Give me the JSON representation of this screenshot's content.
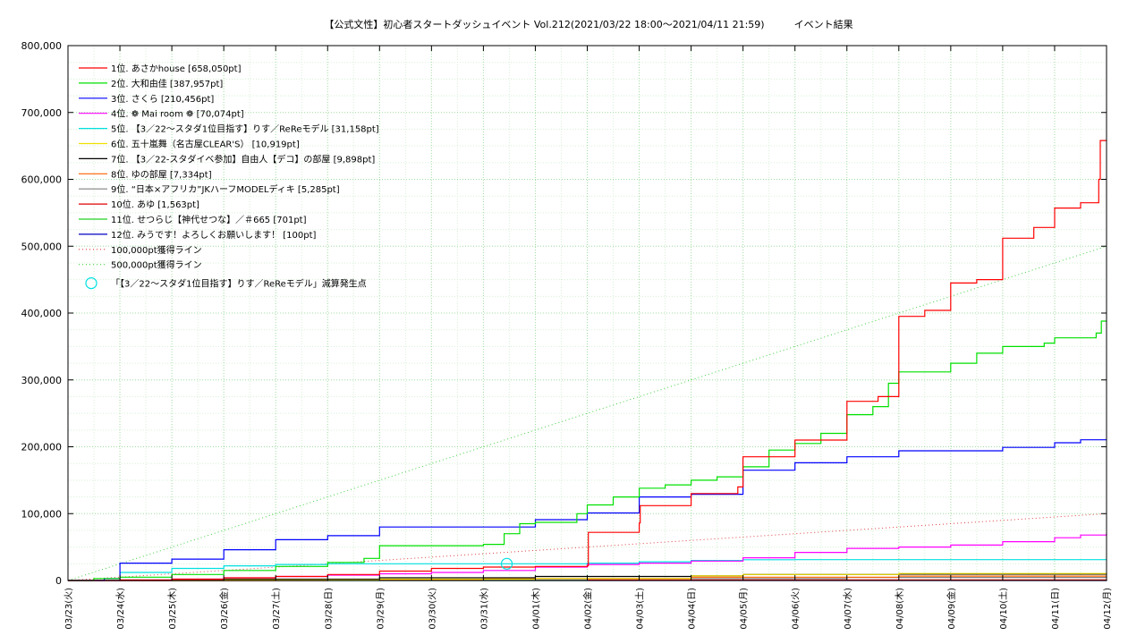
{
  "chart_data": {
    "type": "line",
    "title": "【公式文性】初心者スタートダッシュイベント Vol.212(2021/03/22 18:00〜2021/04/11 21:59)　　　イベント結果",
    "xlabel": "",
    "ylabel": "",
    "x_start": "03/23(火)",
    "x_tick_labels": [
      "03/23(火)",
      "03/24(水)",
      "03/25(木)",
      "03/26(金)",
      "03/27(土)",
      "03/28(日)",
      "03/29(月)",
      "03/30(火)",
      "03/31(水)",
      "04/01(木)",
      "04/02(金)",
      "04/03(土)",
      "04/04(日)",
      "04/05(月)",
      "04/06(火)",
      "04/07(水)",
      "04/08(木)",
      "04/09(金)",
      "04/10(土)",
      "04/11(日)",
      "04/12(月)"
    ],
    "y_tick_labels": [
      "0",
      "100,000",
      "200,000",
      "300,000",
      "400,000",
      "500,000",
      "600,000",
      "700,000",
      "800,000"
    ],
    "ylim": [
      0,
      800000
    ],
    "grid": true,
    "legend_position": "top-left",
    "series": [
      {
        "name": "1位. あさかhouse [658,050pt]",
        "color": "#ff0000",
        "points": [
          [
            0,
            0
          ],
          [
            1,
            1000
          ],
          [
            2,
            2000
          ],
          [
            3,
            4000
          ],
          [
            4,
            6000
          ],
          [
            5,
            9000
          ],
          [
            6,
            14000
          ],
          [
            7,
            18000
          ],
          [
            8,
            20000
          ],
          [
            9,
            21000
          ],
          [
            10,
            22000
          ],
          [
            10.02,
            72000
          ],
          [
            11,
            86000
          ],
          [
            11.02,
            112000
          ],
          [
            12,
            130000
          ],
          [
            12.9,
            140000
          ],
          [
            13,
            185000
          ],
          [
            14,
            210000
          ],
          [
            15,
            268000
          ],
          [
            15.6,
            275000
          ],
          [
            16,
            395000
          ],
          [
            16.5,
            404000
          ],
          [
            17,
            445000
          ],
          [
            17.5,
            450000
          ],
          [
            18,
            512000
          ],
          [
            18.6,
            528000
          ],
          [
            19,
            557000
          ],
          [
            19.5,
            565000
          ],
          [
            19.85,
            600000
          ],
          [
            19.88,
            658050
          ],
          [
            20,
            658050
          ]
        ]
      },
      {
        "name": "2位. 大和由佳 [387,957pt]",
        "color": "#00e000",
        "points": [
          [
            0,
            0
          ],
          [
            0.5,
            3000
          ],
          [
            1,
            5000
          ],
          [
            2,
            9000
          ],
          [
            3,
            15000
          ],
          [
            4,
            21000
          ],
          [
            5,
            27000
          ],
          [
            5.7,
            33000
          ],
          [
            6,
            52000
          ],
          [
            7,
            52000
          ],
          [
            8,
            54000
          ],
          [
            8.4,
            70000
          ],
          [
            8.7,
            85000
          ],
          [
            9,
            87000
          ],
          [
            9.8,
            100000
          ],
          [
            10,
            113000
          ],
          [
            10.5,
            125000
          ],
          [
            11,
            138000
          ],
          [
            11.5,
            143000
          ],
          [
            12,
            150000
          ],
          [
            12.5,
            155000
          ],
          [
            13,
            170000
          ],
          [
            13.5,
            195000
          ],
          [
            14,
            205000
          ],
          [
            14.5,
            220000
          ],
          [
            15,
            248000
          ],
          [
            15.5,
            260000
          ],
          [
            15.8,
            295000
          ],
          [
            16,
            312000
          ],
          [
            17,
            325000
          ],
          [
            17.5,
            340000
          ],
          [
            18,
            350000
          ],
          [
            18.8,
            355000
          ],
          [
            19,
            363000
          ],
          [
            19.8,
            370000
          ],
          [
            19.9,
            387957
          ],
          [
            20,
            387957
          ]
        ]
      },
      {
        "name": "3位. さくら [210,456pt]",
        "color": "#0000ff",
        "points": [
          [
            0,
            0
          ],
          [
            0.7,
            3000
          ],
          [
            1,
            26000
          ],
          [
            2,
            32000
          ],
          [
            3,
            46000
          ],
          [
            4,
            61000
          ],
          [
            5,
            67000
          ],
          [
            6,
            80000
          ],
          [
            7,
            80000
          ],
          [
            8,
            80000
          ],
          [
            9,
            91000
          ],
          [
            10,
            101000
          ],
          [
            11,
            125000
          ],
          [
            12,
            129000
          ],
          [
            13,
            165000
          ],
          [
            14,
            176000
          ],
          [
            15,
            185000
          ],
          [
            16,
            194000
          ],
          [
            17,
            194000
          ],
          [
            18,
            199000
          ],
          [
            19,
            206000
          ],
          [
            19.5,
            210456
          ],
          [
            20,
            210456
          ]
        ]
      },
      {
        "name": "4位. ❁ Mai room ❁ [70,074pt]",
        "color": "#ff00ff",
        "points": [
          [
            0,
            0
          ],
          [
            1,
            0
          ],
          [
            2,
            2000
          ],
          [
            3,
            4000
          ],
          [
            4,
            6000
          ],
          [
            5,
            8000
          ],
          [
            6,
            10000
          ],
          [
            7,
            12000
          ],
          [
            8,
            15000
          ],
          [
            9,
            20000
          ],
          [
            10,
            24000
          ],
          [
            11,
            26000
          ],
          [
            12,
            29000
          ],
          [
            13,
            34000
          ],
          [
            14,
            42000
          ],
          [
            15,
            48000
          ],
          [
            16,
            50000
          ],
          [
            17,
            53000
          ],
          [
            18,
            58000
          ],
          [
            19,
            64000
          ],
          [
            19.5,
            68000
          ],
          [
            20,
            70074
          ]
        ]
      },
      {
        "name": "5位. 【3／22〜スタダ1位目指す】りす／ReReモデル [31,158pt]",
        "color": "#00e0e0",
        "points": [
          [
            0,
            0
          ],
          [
            1,
            12000
          ],
          [
            2,
            18000
          ],
          [
            3,
            22000
          ],
          [
            4,
            24000
          ],
          [
            5,
            25000
          ],
          [
            6,
            25000
          ],
          [
            7,
            25000
          ],
          [
            8,
            25000
          ],
          [
            9,
            25000
          ],
          [
            10,
            26000
          ],
          [
            11,
            28000
          ],
          [
            12,
            30000
          ],
          [
            13,
            31000
          ],
          [
            14,
            31158
          ],
          [
            20,
            31158
          ]
        ]
      },
      {
        "name": "6位. 五十嵐舞（名古屋CLEAR'S） [10,919pt]",
        "color": "#f0e000",
        "points": [
          [
            0,
            0
          ],
          [
            3,
            1000
          ],
          [
            6,
            2000
          ],
          [
            9,
            3000
          ],
          [
            12,
            7000
          ],
          [
            13,
            9000
          ],
          [
            16,
            10500
          ],
          [
            20,
            10919
          ]
        ]
      },
      {
        "name": "7位. 【3／22-スタダイベ参加】自由人【デコ】の部屋 [9,898pt]",
        "color": "#000000",
        "points": [
          [
            0,
            0
          ],
          [
            3,
            2000
          ],
          [
            6,
            4000
          ],
          [
            9,
            6000
          ],
          [
            12,
            7000
          ],
          [
            13,
            9000
          ],
          [
            16,
            9500
          ],
          [
            20,
            9898
          ]
        ]
      },
      {
        "name": "8位. ゆの部屋 [7,334pt]",
        "color": "#ff6000",
        "points": [
          [
            0,
            0
          ],
          [
            4,
            1000
          ],
          [
            8,
            3000
          ],
          [
            12,
            5000
          ],
          [
            16,
            6500
          ],
          [
            20,
            7334
          ]
        ]
      },
      {
        "name": "9位. “日本×アフリカ”JKハーフMODELディキ [5,285pt]",
        "color": "#808080",
        "points": [
          [
            0,
            0
          ],
          [
            5,
            1000
          ],
          [
            10,
            3000
          ],
          [
            15,
            4500
          ],
          [
            20,
            5285
          ]
        ]
      },
      {
        "name": "10位. あゆ [1,563pt]",
        "color": "#e00000",
        "points": [
          [
            0,
            0
          ],
          [
            5,
            500
          ],
          [
            10,
            1000
          ],
          [
            20,
            1563
          ]
        ]
      },
      {
        "name": "11位. せつらじ【神代せつな】／＃665 [701pt]",
        "color": "#20d020",
        "points": [
          [
            0,
            0
          ],
          [
            10,
            400
          ],
          [
            20,
            701
          ]
        ]
      },
      {
        "name": "12位. みうです！よろしくお願いします！ [100pt]",
        "color": "#0000c0",
        "points": [
          [
            0,
            0
          ],
          [
            20,
            100
          ]
        ]
      },
      {
        "name": "100,000pt獲得ライン",
        "color": "#e04040",
        "dotted": true,
        "points": [
          [
            0,
            0
          ],
          [
            20,
            100000
          ]
        ]
      },
      {
        "name": "500,000pt獲得ライン",
        "color": "#40d040",
        "dotted": true,
        "points": [
          [
            0,
            0
          ],
          [
            20,
            500000
          ]
        ]
      }
    ],
    "markers": [
      {
        "name": "「【3／22〜スタダ1位目指す】りす／ReReモデル」減算発生点",
        "color": "#00e0e0",
        "x": 8.45,
        "y": 25000
      }
    ]
  }
}
